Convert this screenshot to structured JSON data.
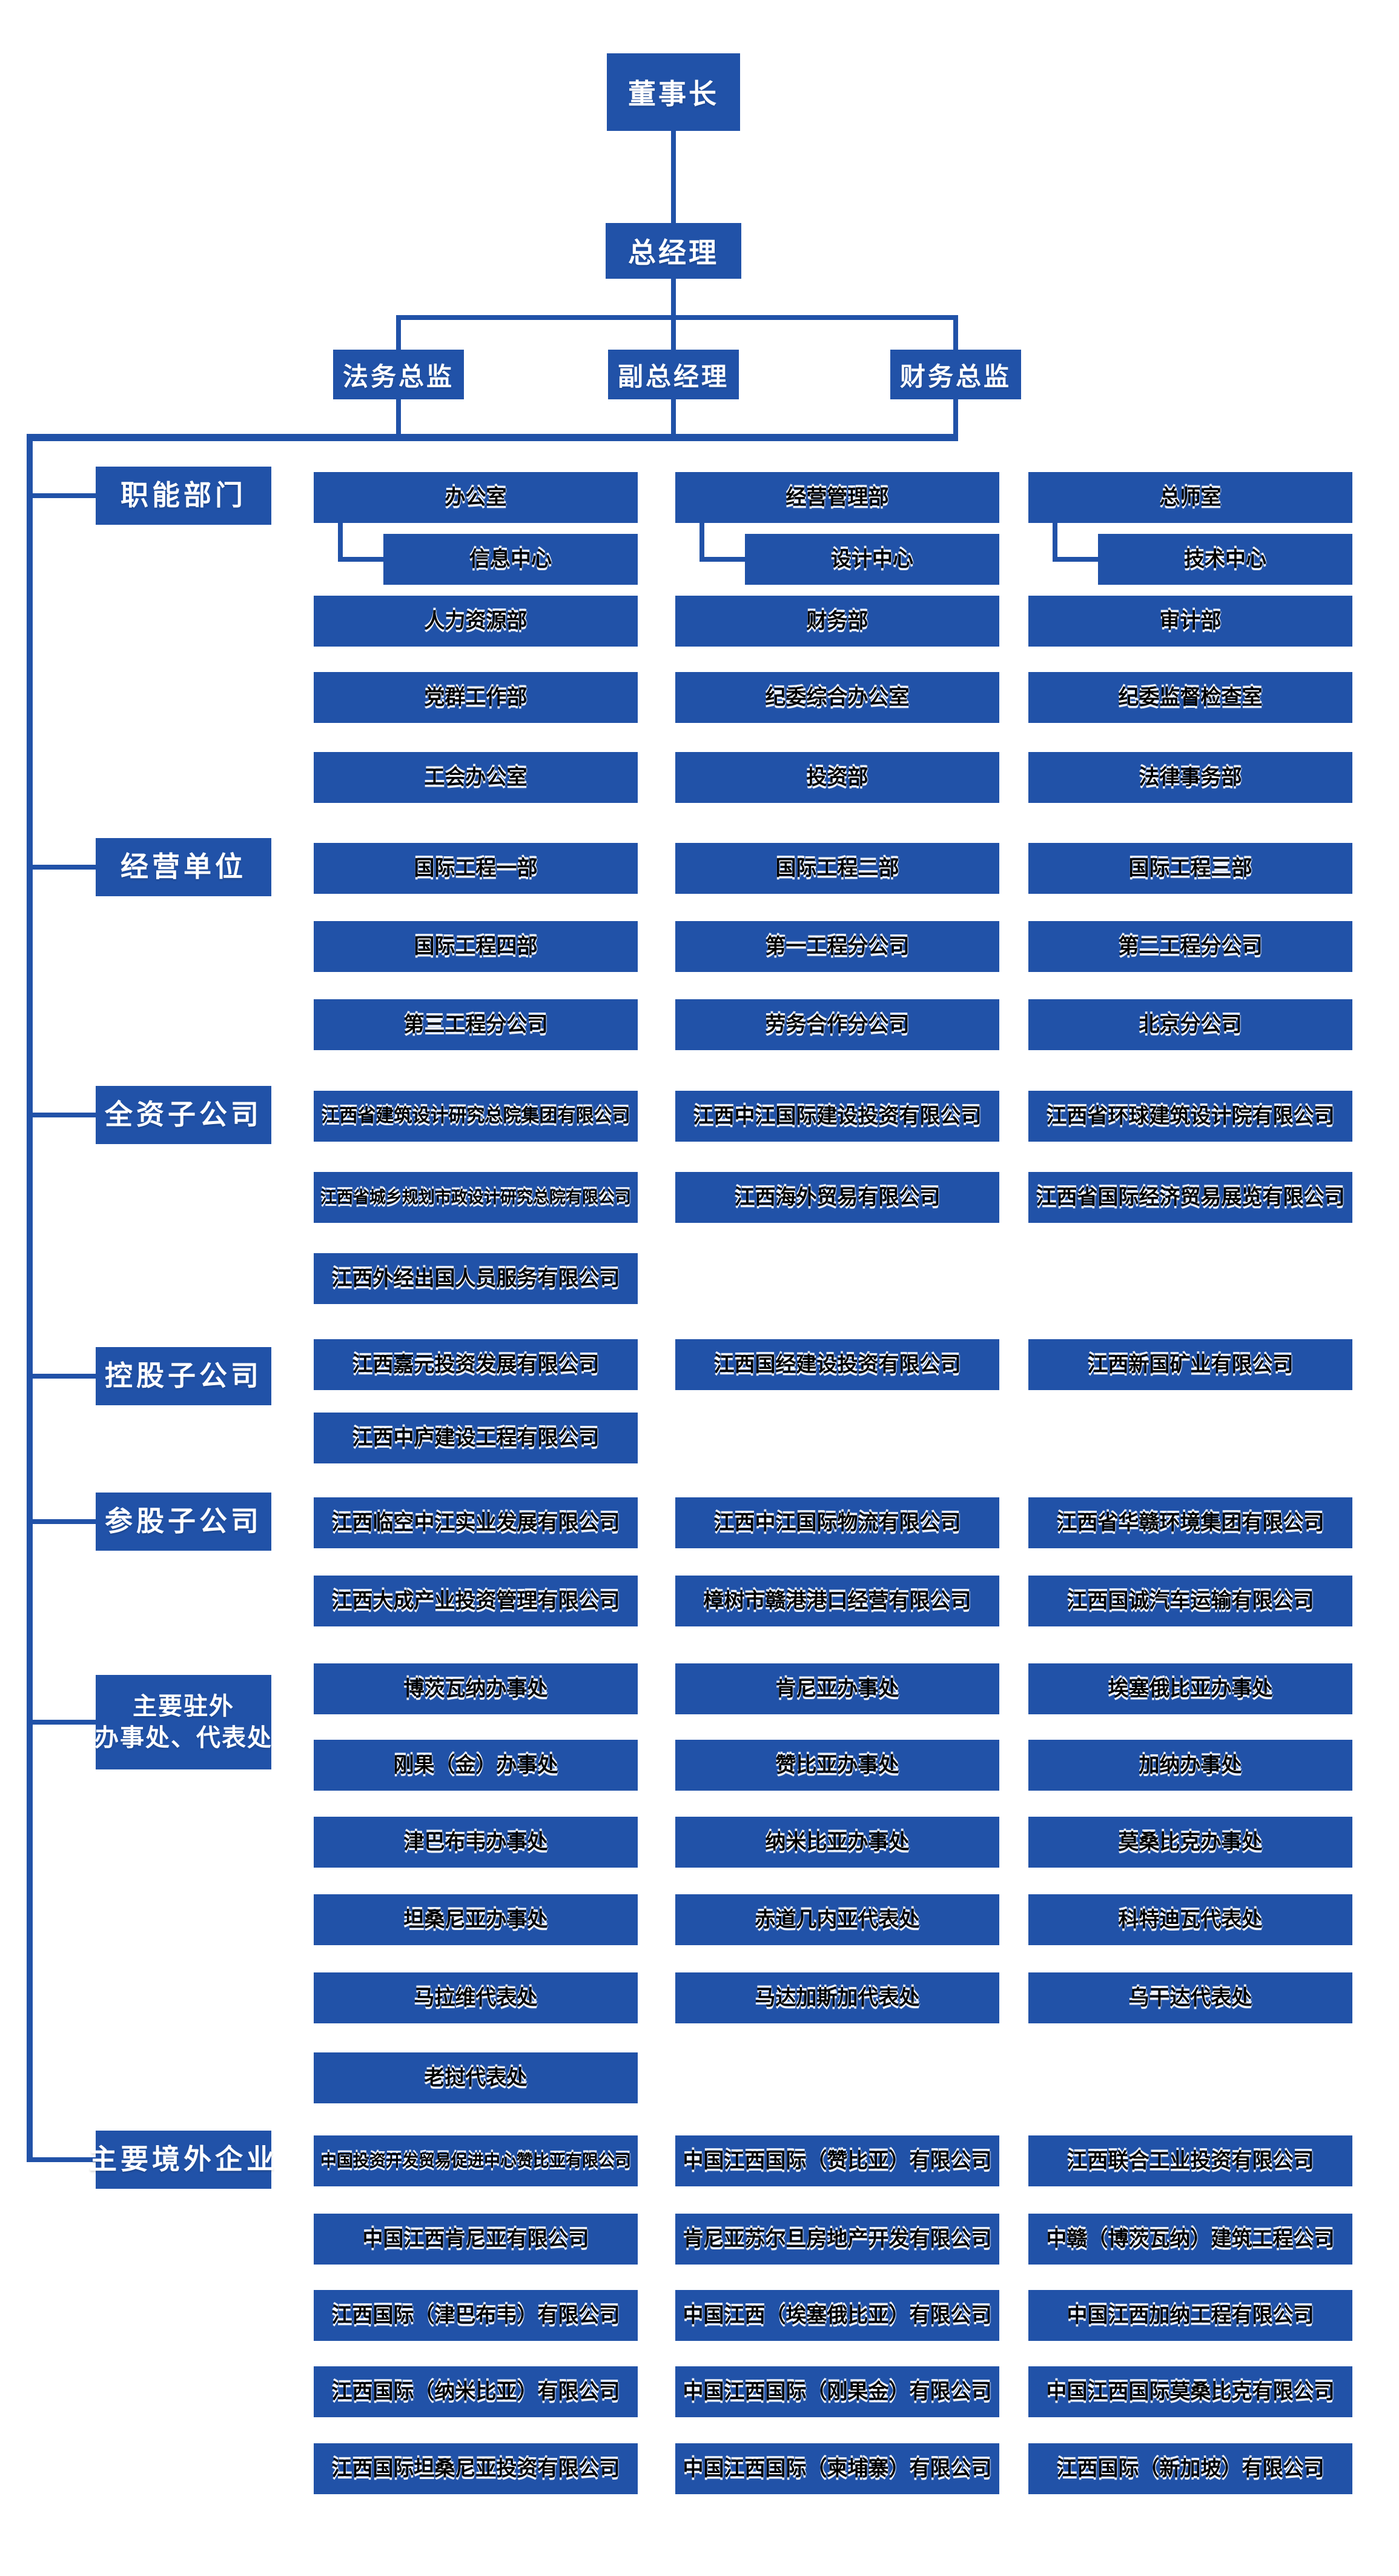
{
  "palette": {
    "box_blue": "#2152a8",
    "top_text": "#ffffff",
    "cell_text_glitch": "#000000",
    "background": "#ffffff"
  },
  "hierarchy": {
    "chairman": "董事长",
    "general_manager": "总经理",
    "executives": [
      "法务总监",
      "副总经理",
      "财务总监"
    ]
  },
  "sections": [
    {
      "label": "职能部门",
      "rows": [
        {
          "cells": [
            "办公室",
            "经营管理部",
            "总师室"
          ]
        },
        {
          "indent": true,
          "cells": [
            "信息中心",
            "设计中心",
            "技术中心"
          ]
        },
        {
          "cells": [
            "人力资源部",
            "财务部",
            "审计部"
          ]
        },
        {
          "cells": [
            "党群工作部",
            "纪委综合办公室",
            "纪委监督检查室"
          ]
        },
        {
          "cells": [
            "工会办公室",
            "投资部",
            "法律事务部"
          ]
        }
      ]
    },
    {
      "label": "经营单位",
      "rows": [
        {
          "cells": [
            "国际工程一部",
            "国际工程二部",
            "国际工程三部"
          ]
        },
        {
          "cells": [
            "国际工程四部",
            "第一工程分公司",
            "第二工程分公司"
          ]
        },
        {
          "cells": [
            "第三工程分公司",
            "劳务合作分公司",
            "北京分公司"
          ]
        }
      ]
    },
    {
      "label": "全资子公司",
      "rows": [
        {
          "cells": [
            "江西省建筑设计研究总院集团有限公司",
            "江西中江国际建设投资有限公司",
            "江西省环球建筑设计院有限公司"
          ]
        },
        {
          "cells": [
            "江西省城乡规划市政设计研究总院有限公司",
            "江西海外贸易有限公司",
            "江西省国际经济贸易展览有限公司"
          ]
        },
        {
          "cells": [
            "江西外经出国人员服务有限公司"
          ]
        }
      ]
    },
    {
      "label": "控股子公司",
      "rows": [
        {
          "cells": [
            "江西嘉元投资发展有限公司",
            "江西国经建设投资有限公司",
            "江西新国矿业有限公司"
          ]
        },
        {
          "cells": [
            "江西中庐建设工程有限公司"
          ]
        }
      ]
    },
    {
      "label": "参股子公司",
      "rows": [
        {
          "cells": [
            "江西临空中江实业发展有限公司",
            "江西中江国际物流有限公司",
            "江西省华赣环境集团有限公司"
          ]
        },
        {
          "cells": [
            "江西大成产业投资管理有限公司",
            "樟树市赣港港口经营有限公司",
            "江西国诚汽车运输有限公司"
          ]
        }
      ]
    },
    {
      "label": "主要驻外办事处、代表处",
      "label_lines": [
        "主要驻外",
        "办事处、代表处"
      ],
      "rows": [
        {
          "cells": [
            "博茨瓦纳办事处",
            "肯尼亚办事处",
            "埃塞俄比亚办事处"
          ]
        },
        {
          "cells": [
            "刚果（金）办事处",
            "赞比亚办事处",
            "加纳办事处"
          ]
        },
        {
          "cells": [
            "津巴布韦办事处",
            "纳米比亚办事处",
            "莫桑比克办事处"
          ]
        },
        {
          "cells": [
            "坦桑尼亚办事处",
            "赤道几内亚代表处",
            "科特迪瓦代表处"
          ]
        },
        {
          "cells": [
            "马拉维代表处",
            "马达加斯加代表处",
            "乌干达代表处"
          ]
        },
        {
          "cells": [
            "老挝代表处"
          ]
        }
      ]
    },
    {
      "label": "主要境外企业",
      "rows": [
        {
          "cells": [
            "中国投资开发贸易促进中心赞比亚有限公司",
            "中国江西国际（赞比亚）有限公司",
            "江西联合工业投资有限公司"
          ]
        },
        {
          "cells": [
            "中国江西肯尼亚有限公司",
            "肯尼亚苏尔旦房地产开发有限公司",
            "中赣（博茨瓦纳）建筑工程公司"
          ]
        },
        {
          "cells": [
            "江西国际（津巴布韦）有限公司",
            "中国江西（埃塞俄比亚）有限公司",
            "中国江西加纳工程有限公司"
          ]
        },
        {
          "cells": [
            "江西国际（纳米比亚）有限公司",
            "中国江西国际（刚果金）有限公司",
            "中国江西国际莫桑比克有限公司"
          ]
        },
        {
          "cells": [
            "江西国际坦桑尼亚投资有限公司",
            "中国江西国际（柬埔寨）有限公司",
            "江西国际（新加坡）有限公司"
          ]
        }
      ]
    }
  ]
}
